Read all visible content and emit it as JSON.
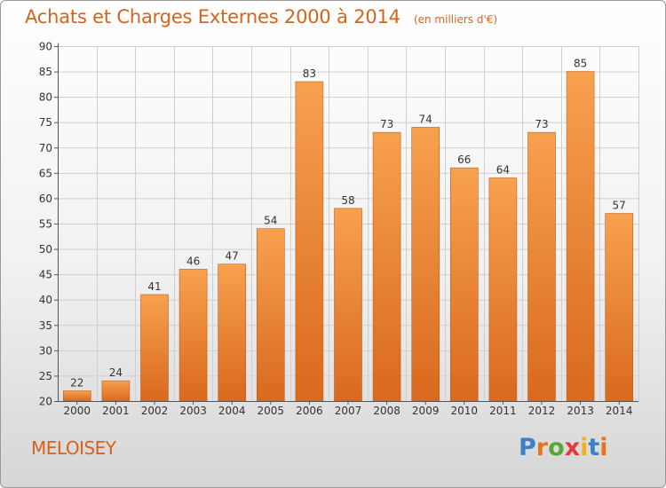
{
  "header": {
    "title": "Achats et Charges Externes 2000 à 2014",
    "subtitle": "(en milliers d'€)"
  },
  "footer": {
    "town": "MELOISEY",
    "logo_text": "Proxiti"
  },
  "colors": {
    "accent": "#d9621b",
    "bar_light": "#f7a14f",
    "bar_dark": "#d9691e",
    "logo_letters": [
      "#3b82c4",
      "#e8741e",
      "#57a639",
      "#e53935",
      "#f2b01e",
      "#3b82c4",
      "#e8741e"
    ]
  },
  "chart_data": {
    "type": "bar",
    "categories": [
      "2000",
      "2001",
      "2002",
      "2003",
      "2004",
      "2005",
      "2006",
      "2007",
      "2008",
      "2009",
      "2010",
      "2011",
      "2012",
      "2013",
      "2014"
    ],
    "values": [
      22,
      24,
      41,
      46,
      47,
      54,
      83,
      58,
      73,
      74,
      66,
      64,
      73,
      85,
      57
    ],
    "ylim": [
      20,
      90
    ],
    "yticks": [
      20,
      25,
      30,
      35,
      40,
      45,
      50,
      55,
      60,
      65,
      70,
      75,
      80,
      85,
      90
    ],
    "grid": true,
    "data_labels": true
  }
}
